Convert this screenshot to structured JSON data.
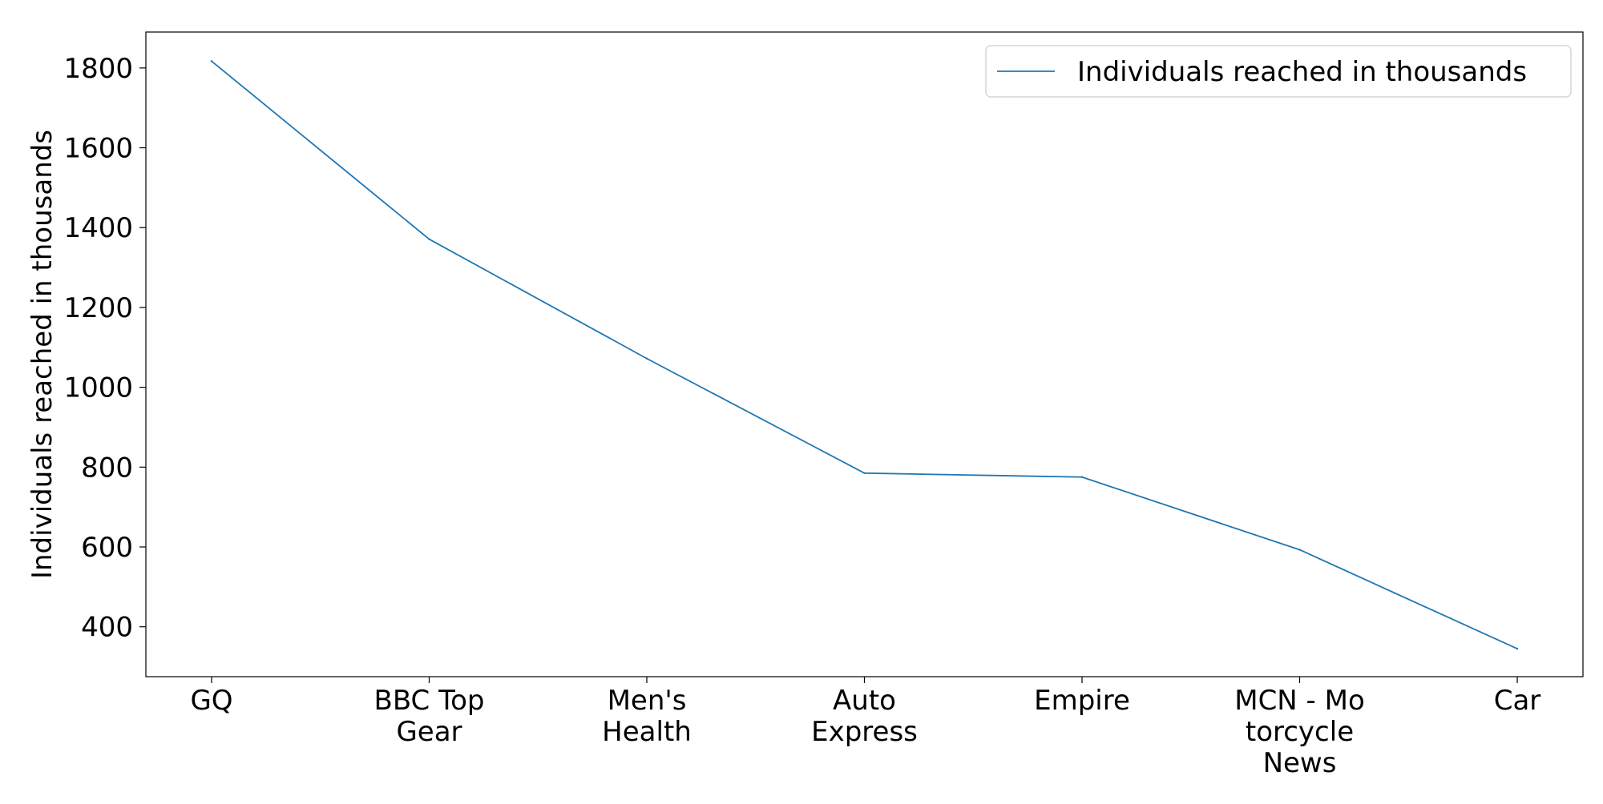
{
  "chart_data": {
    "type": "line",
    "title": "",
    "xlabel": "",
    "ylabel": "Individuals reached in thousands",
    "categories": [
      [
        "GQ"
      ],
      [
        "BBC Top",
        "Gear"
      ],
      [
        "Men's",
        "Health"
      ],
      [
        "Auto",
        "Express"
      ],
      [
        "Empire"
      ],
      [
        "MCN - Mo",
        "torcycle",
        "News"
      ],
      [
        "Car"
      ]
    ],
    "series": [
      {
        "name": "Individuals reached in thousands",
        "color": "#1f77b4",
        "values": [
          1817,
          1371,
          1072,
          785,
          775,
          593,
          345
        ]
      }
    ],
    "ylim": [
      275,
      1890
    ],
    "yticks": [
      400,
      600,
      800,
      1000,
      1200,
      1400,
      1600,
      1800
    ],
    "grid": false,
    "legend": "top-right"
  }
}
